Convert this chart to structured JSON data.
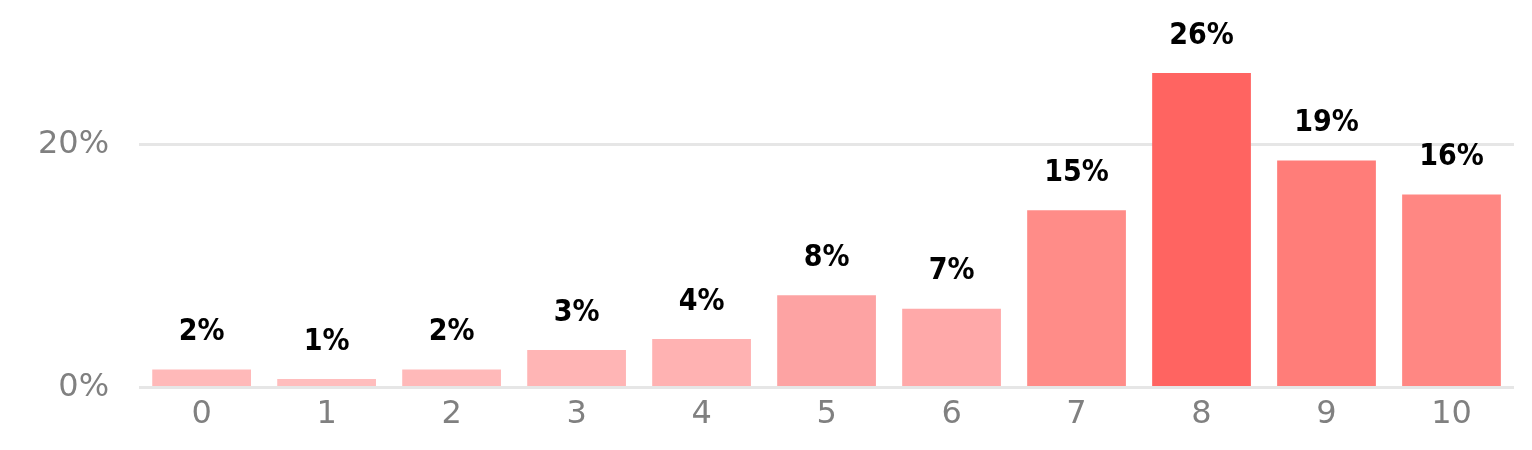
{
  "chart_data": {
    "type": "bar",
    "categories": [
      "0",
      "1",
      "2",
      "3",
      "4",
      "5",
      "6",
      "7",
      "8",
      "9",
      "10"
    ],
    "values": [
      1.5,
      0.7,
      1.5,
      3.1,
      4.0,
      7.6,
      6.5,
      14.6,
      25.9,
      18.7,
      15.9
    ],
    "value_labels": [
      "2%",
      "1%",
      "2%",
      "3%",
      "4%",
      "8%",
      "7%",
      "15%",
      "26%",
      "19%",
      "16%"
    ],
    "colors": [
      "#ffb9b9",
      "#ffbdbd",
      "#ffb9b9",
      "#ffb5b5",
      "#ffb2b2",
      "#fda3a3",
      "#ffa9a9",
      "#ff8c88",
      "#ff6461",
      "#ff7d79",
      "#ff8783"
    ],
    "ylim": [
      0,
      25.9
    ],
    "yticks": [
      {
        "value": 0,
        "label": "0%"
      },
      {
        "value": 20,
        "label": "20%"
      }
    ],
    "grid": "y",
    "legend": false
  }
}
